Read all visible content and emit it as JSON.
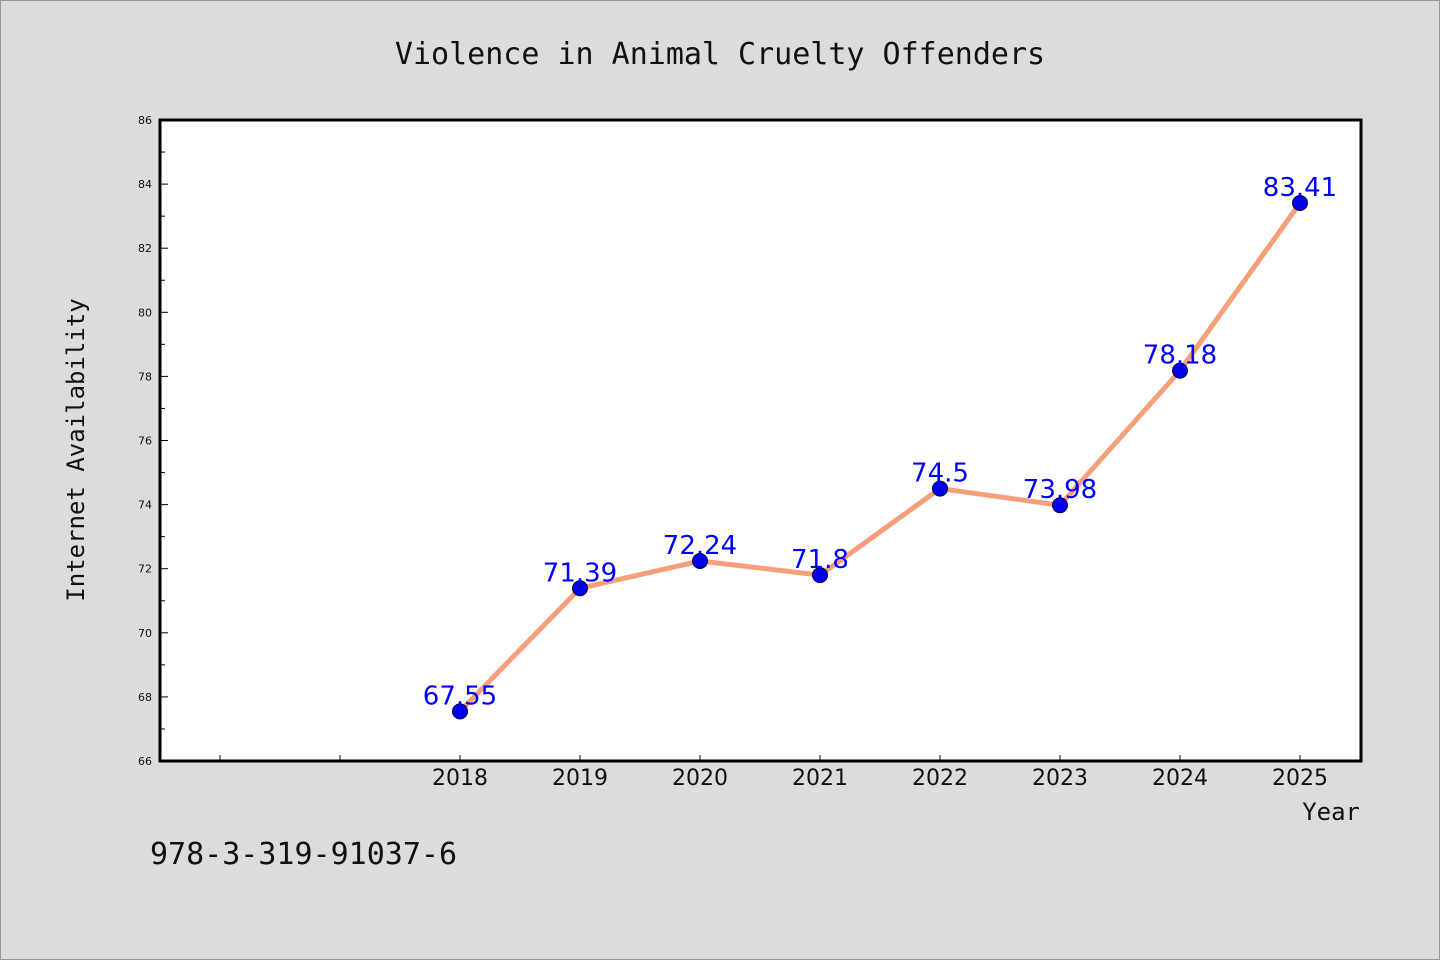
{
  "chart_data": {
    "type": "line",
    "title": "Violence in Animal Cruelty Offenders",
    "xlabel": "Year",
    "ylabel": "Internet Availability",
    "categories": [
      "2018",
      "2019",
      "2020",
      "2021",
      "2022",
      "2023",
      "2024",
      "2025"
    ],
    "series": [
      {
        "values": [
          67.55,
          71.39,
          72.24,
          71.8,
          74.5,
          73.98,
          78.18,
          83.41
        ],
        "labels": [
          "67.55",
          "71.39",
          "72.24",
          "71.8",
          "74.5",
          "73.98",
          "78.18",
          "83.41"
        ],
        "line_color": "#f5a07a",
        "marker_color": "#0000ee"
      }
    ],
    "ylim": [
      66,
      86
    ],
    "yticks": [
      66,
      68,
      70,
      72,
      74,
      76,
      78,
      80,
      82,
      84,
      86
    ],
    "ytick_labels": [
      "66",
      "68",
      "70",
      "72",
      "74",
      "76",
      "78",
      "80",
      "82",
      "84",
      "86"
    ],
    "grid": false,
    "legend": "none",
    "label_color": "#0000ff",
    "background": "#dcdcdc",
    "plot_background": "#ffffff"
  },
  "footnote": "978-3-319-91037-6"
}
